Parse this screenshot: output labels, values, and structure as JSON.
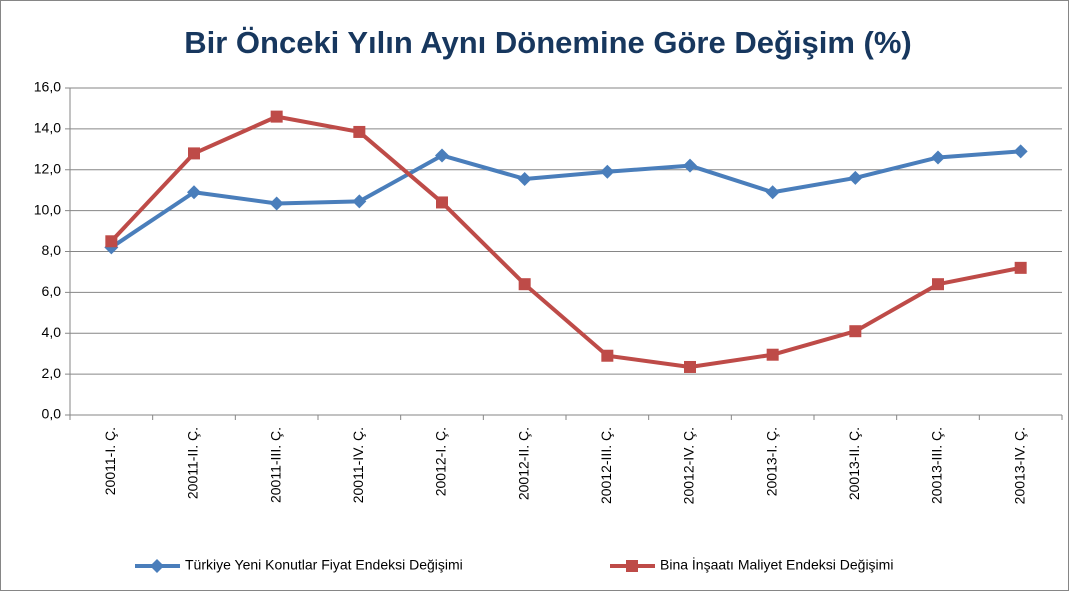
{
  "chart_data": {
    "type": "line",
    "title": "Bir Önceki Yılın Aynı Dönemine Göre Değişim (%)",
    "categories": [
      "20011-I. Ç.",
      "20011-II. Ç.",
      "20011-III. Ç.",
      "20011-IV. Ç.",
      "20012-I. Ç.",
      "20012-II. Ç.",
      "20012-III. Ç.",
      "20012-IV. Ç.",
      "20013-I. Ç.",
      "20013-II. Ç.",
      "20013-III. Ç.",
      "20013-IV. Ç."
    ],
    "series": [
      {
        "name": "Türkiye Yeni Konutlar Fiyat Endeksi Değişimi",
        "color": "#4a7ebb",
        "marker": "diamond",
        "values": [
          8.2,
          10.9,
          10.35,
          10.45,
          12.7,
          11.55,
          11.9,
          12.2,
          10.9,
          11.6,
          12.6,
          12.9
        ]
      },
      {
        "name": "Bina İnşaatı Maliyet Endeksi Değişimi",
        "color": "#be4b48",
        "marker": "square",
        "values": [
          8.5,
          12.8,
          14.6,
          13.85,
          10.4,
          6.4,
          2.9,
          2.35,
          2.95,
          4.1,
          6.4,
          7.2
        ]
      }
    ],
    "ylim": [
      0,
      16
    ],
    "yticks": [
      {
        "value": 0,
        "label": "0,0"
      },
      {
        "value": 2,
        "label": "2,0"
      },
      {
        "value": 4,
        "label": "4,0"
      },
      {
        "value": 6,
        "label": "6,0"
      },
      {
        "value": 8,
        "label": "8,0"
      },
      {
        "value": 10,
        "label": "10,0"
      },
      {
        "value": 12,
        "label": "12,0"
      },
      {
        "value": 14,
        "label": "14,0"
      },
      {
        "value": 16,
        "label": "16,0"
      }
    ],
    "grid": true,
    "legend": "bottom"
  }
}
